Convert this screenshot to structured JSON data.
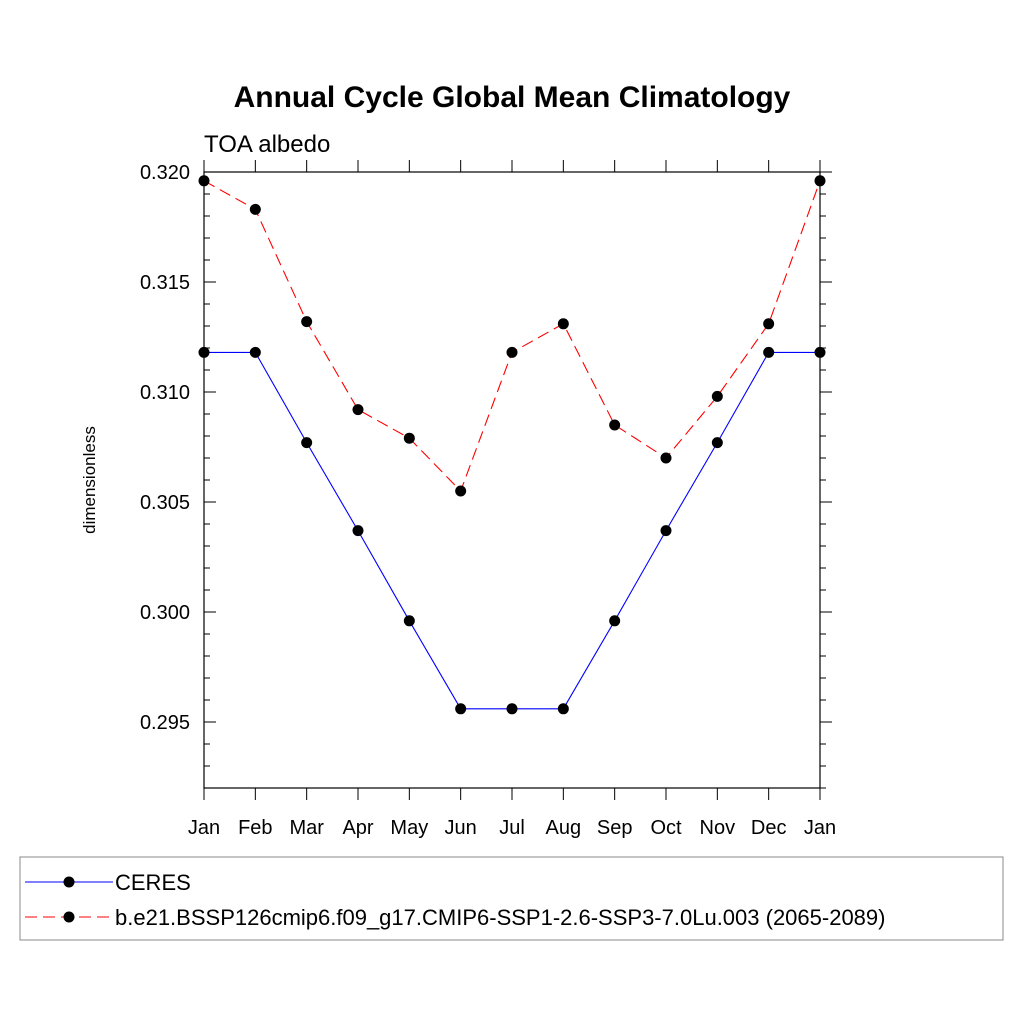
{
  "chart_data": {
    "type": "line",
    "title": "Annual Cycle Global Mean Climatology",
    "subtitle": "TOA albedo",
    "xlabel": "",
    "ylabel": "dimensionless",
    "categories": [
      "Jan",
      "Feb",
      "Mar",
      "Apr",
      "May",
      "Jun",
      "Jul",
      "Aug",
      "Sep",
      "Oct",
      "Nov",
      "Dec",
      "Jan"
    ],
    "ylim": [
      0.292,
      0.32
    ],
    "yticks": [
      0.295,
      0.3,
      0.305,
      0.31,
      0.315,
      0.32
    ],
    "ytick_labels": [
      "0.295",
      "0.300",
      "0.305",
      "0.310",
      "0.315",
      "0.320"
    ],
    "grid": false,
    "legend_position": "bottom",
    "series": [
      {
        "name": "CERES",
        "color": "#0000ff",
        "dash": "solid",
        "marker": "circle",
        "values": [
          0.3118,
          0.3118,
          0.3077,
          0.3037,
          0.2996,
          0.2956,
          0.2956,
          0.2956,
          0.2996,
          0.3037,
          0.3077,
          0.3118,
          0.3118
        ]
      },
      {
        "name": "b.e21.BSSP126cmip6.f09_g17.CMIP6-SSP1-2.6-SSP3-7.0Lu.003 (2065-2089)",
        "color": "#ff0000",
        "dash": "dashed",
        "marker": "circle",
        "values": [
          0.3196,
          0.3183,
          0.3132,
          0.3092,
          0.3079,
          0.3055,
          0.3118,
          0.3131,
          0.3085,
          0.307,
          0.3098,
          0.3131,
          0.3196
        ]
      }
    ]
  }
}
